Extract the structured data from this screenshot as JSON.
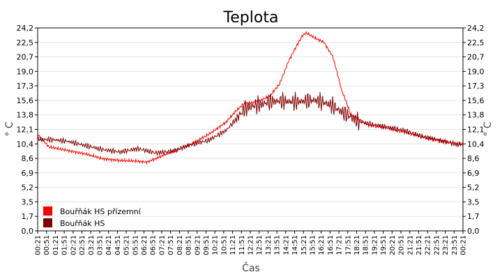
{
  "chart_data": {
    "type": "line",
    "title": "Teplota",
    "xlabel": "Čas",
    "ylabel": "° C",
    "y_ticks": [
      "0,0",
      "1,7",
      "3,5",
      "5,2",
      "6,9",
      "8,6",
      "10,4",
      "12,1",
      "13,8",
      "15,6",
      "17,3",
      "19,0",
      "20,7",
      "22,5",
      "24,2"
    ],
    "ylim": [
      0,
      24.2
    ],
    "x_ticks": [
      "00:21",
      "00:51",
      "01:21",
      "01:51",
      "02:21",
      "02:51",
      "03:21",
      "03:51",
      "04:21",
      "04:51",
      "05:21",
      "05:51",
      "06:21",
      "06:51",
      "07:21",
      "07:51",
      "08:21",
      "08:51",
      "09:21",
      "09:51",
      "10:21",
      "10:51",
      "11:21",
      "11:51",
      "12:21",
      "12:51",
      "13:21",
      "13:51",
      "14:21",
      "14:51",
      "15:21",
      "15:51",
      "16:21",
      "16:51",
      "17:21",
      "17:51",
      "18:21",
      "18:51",
      "19:21",
      "19:51",
      "20:21",
      "20:51",
      "21:21",
      "21:51",
      "22:21",
      "22:51",
      "23:21",
      "23:51",
      "00:21"
    ],
    "grid": true,
    "legend_position": "bottom-left",
    "series": [
      {
        "name": "Bouřňák HS přízemní",
        "color": "#ff0000",
        "x_hours": [
          0.35,
          1,
          2,
          3,
          4,
          5,
          6,
          6.5,
          7,
          8,
          9,
          10,
          11,
          11.5,
          12,
          12.5,
          13,
          13.5,
          14,
          14.5,
          15,
          15.3,
          15.5,
          16,
          16.5,
          17,
          17.3,
          17.5,
          17.8,
          18,
          18.5,
          19,
          20,
          21,
          22,
          23,
          24,
          24.35
        ],
        "values": [
          11.5,
          10.0,
          9.6,
          9.2,
          8.6,
          8.4,
          8.3,
          8.2,
          8.6,
          9.5,
          10.3,
          11.5,
          13.0,
          14.2,
          15.2,
          15.3,
          15.6,
          16.2,
          17.5,
          20.2,
          22.2,
          23.3,
          23.6,
          23.0,
          22.5,
          20.8,
          18.5,
          16.8,
          15.2,
          13.9,
          13.3,
          12.6,
          12.3,
          11.8,
          11.2,
          10.8,
          10.4,
          10.4
        ]
      },
      {
        "name": "Bouřňák HS",
        "color": "#800000",
        "x_hours": [
          0.35,
          1,
          2,
          3,
          4,
          5,
          6,
          7,
          8,
          9,
          10,
          11,
          11.5,
          12,
          12.5,
          13,
          13.5,
          14,
          14.5,
          15,
          15.5,
          16,
          16.5,
          17,
          17.5,
          18,
          18.5,
          19,
          20,
          21,
          22,
          23,
          24,
          24.35
        ],
        "values": [
          10.9,
          10.9,
          10.7,
          10.2,
          9.7,
          9.4,
          9.8,
          9.3,
          9.5,
          10.3,
          10.8,
          12.0,
          13.2,
          14.5,
          14.9,
          15.1,
          15.4,
          15.5,
          15.4,
          15.4,
          15.5,
          15.6,
          15.3,
          14.9,
          14.2,
          13.6,
          13.0,
          12.8,
          12.4,
          12.0,
          11.3,
          10.8,
          10.3,
          10.3
        ]
      }
    ]
  }
}
